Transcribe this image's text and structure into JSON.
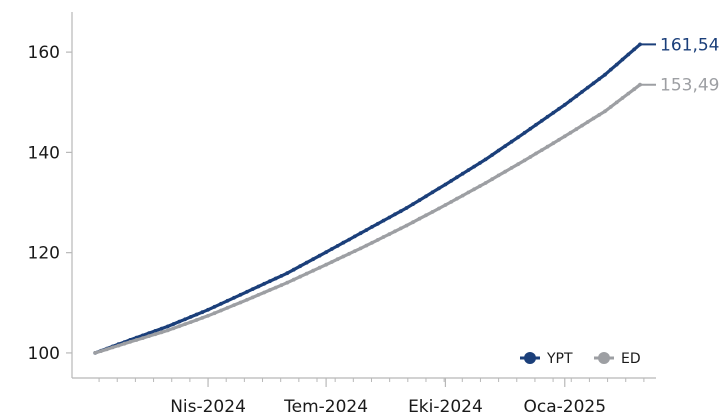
{
  "chart_data": {
    "type": "line",
    "title": "",
    "xlabel": "",
    "ylabel": "",
    "x_range": [
      "2024-01-01",
      "2025-02-28"
    ],
    "ylim": [
      95,
      168
    ],
    "yticks": [
      100,
      120,
      140,
      160
    ],
    "xticks": [
      {
        "label": "Nis-2024",
        "date": "2024-04-01"
      },
      {
        "label": "Tem-2024",
        "date": "2024-07-01"
      },
      {
        "label": "Eki-2024",
        "date": "2024-10-01"
      },
      {
        "label": "Oca-2025",
        "date": "2025-01-01"
      }
    ],
    "grid": false,
    "legend_position": "bottom-right",
    "series": [
      {
        "name": "YPT",
        "color": "#1b3f7a",
        "end_label": "161,54",
        "points": [
          [
            "2024-01-05",
            100.0
          ],
          [
            "2024-02-01",
            102.6
          ],
          [
            "2024-03-01",
            105.3
          ],
          [
            "2024-04-01",
            108.6
          ],
          [
            "2024-05-01",
            112.2
          ],
          [
            "2024-06-01",
            115.9
          ],
          [
            "2024-07-01",
            120.1
          ],
          [
            "2024-08-01",
            124.5
          ],
          [
            "2024-09-01",
            128.9
          ],
          [
            "2024-10-01",
            133.6
          ],
          [
            "2024-11-01",
            138.6
          ],
          [
            "2024-12-01",
            143.9
          ],
          [
            "2025-01-01",
            149.5
          ],
          [
            "2025-02-01",
            155.5
          ],
          [
            "2025-02-28",
            161.54
          ]
        ]
      },
      {
        "name": "ED",
        "color": "#9d9fa3",
        "end_label": "153,49",
        "points": [
          [
            "2024-01-05",
            100.0
          ],
          [
            "2024-02-01",
            102.2
          ],
          [
            "2024-03-01",
            104.5
          ],
          [
            "2024-04-01",
            107.4
          ],
          [
            "2024-05-01",
            110.6
          ],
          [
            "2024-06-01",
            114.0
          ],
          [
            "2024-07-01",
            117.6
          ],
          [
            "2024-08-01",
            121.4
          ],
          [
            "2024-09-01",
            125.4
          ],
          [
            "2024-10-01",
            129.5
          ],
          [
            "2024-11-01",
            133.9
          ],
          [
            "2024-12-01",
            138.4
          ],
          [
            "2025-01-01",
            143.2
          ],
          [
            "2025-02-01",
            148.2
          ],
          [
            "2025-02-28",
            153.49
          ]
        ]
      }
    ]
  }
}
